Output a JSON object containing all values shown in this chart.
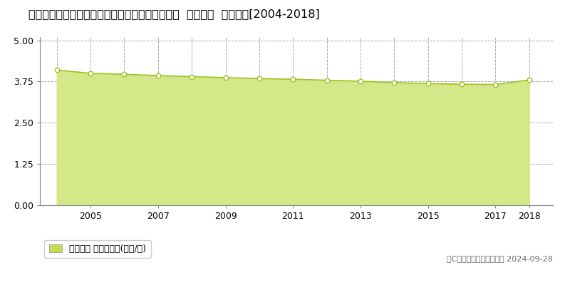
{
  "title": "茨城県那珂郡東海村大字豊岡字西の妻４６０番２  基準地価  地価推移[2004-2018]",
  "data_years": [
    2004,
    2005,
    2006,
    2007,
    2008,
    2009,
    2010,
    2011,
    2012,
    2013,
    2014,
    2015,
    2016,
    2017,
    2018
  ],
  "data_values": [
    4.1,
    4.0,
    3.97,
    3.93,
    3.9,
    3.87,
    3.84,
    3.82,
    3.79,
    3.76,
    3.72,
    3.69,
    3.67,
    3.66,
    3.8
  ],
  "line_color": "#a0c020",
  "fill_color": "#d4e88a",
  "marker_facecolor": "#ffffff",
  "marker_edgecolor": "#a0c020",
  "bg_color": "#ffffff",
  "plot_bg_color": "#ffffff",
  "grid_color": "#aaaaaa",
  "yticks": [
    0,
    1.25,
    2.5,
    3.75,
    5
  ],
  "ylim": [
    0,
    5.1
  ],
  "xlim_left": 2003.5,
  "xlim_right": 2018.7,
  "xtick_years": [
    2005,
    2007,
    2009,
    2011,
    2013,
    2015,
    2017,
    2018
  ],
  "vgrid_years": [
    2004,
    2005,
    2006,
    2007,
    2008,
    2009,
    2010,
    2011,
    2012,
    2013,
    2014,
    2015,
    2016,
    2017,
    2018
  ],
  "legend_label": "基準地価 平均坪単価(万円/坪)",
  "legend_color": "#c8dc50",
  "copyright_text": "（C）土地価格ドットコム 2024-09-28",
  "title_fontsize": 11.5,
  "axis_fontsize": 9,
  "legend_fontsize": 9
}
